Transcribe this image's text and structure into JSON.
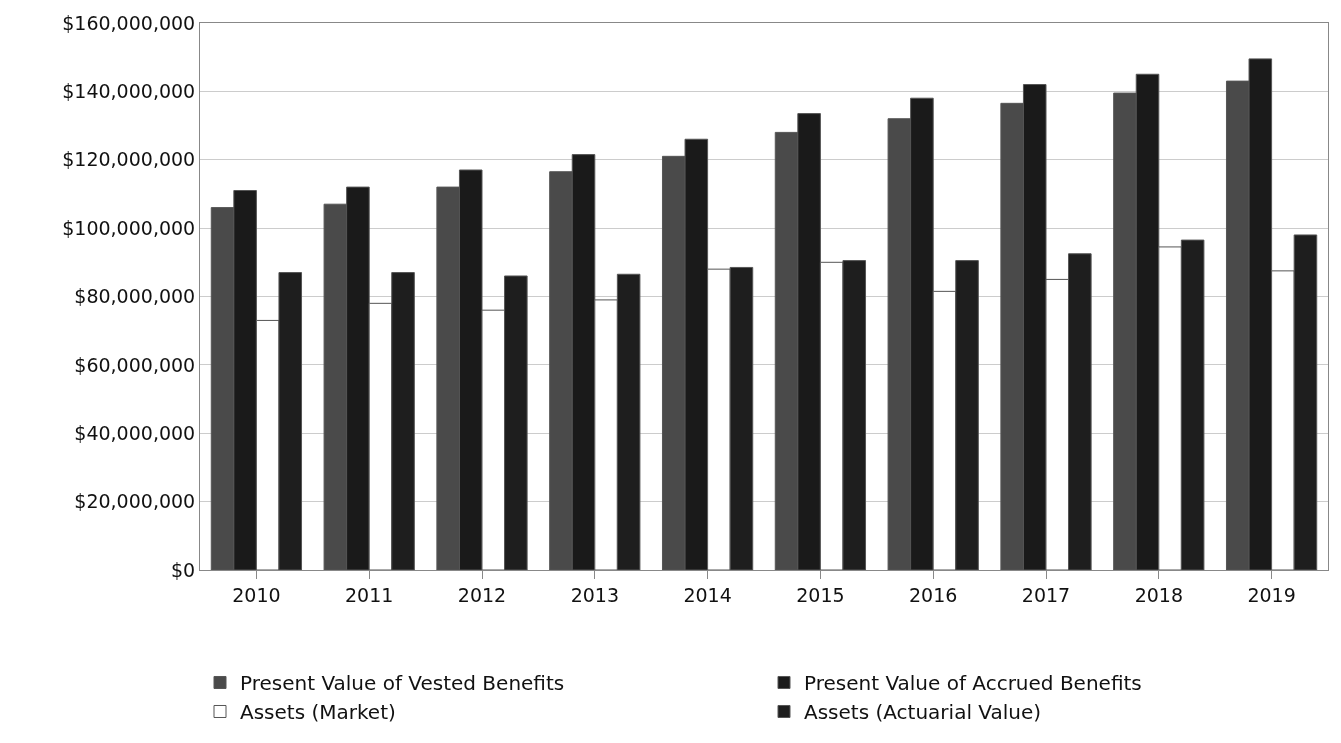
{
  "chart_data": {
    "type": "bar",
    "categories": [
      "2010",
      "2011",
      "2012",
      "2013",
      "2014",
      "2015",
      "2016",
      "2017",
      "2018",
      "2019"
    ],
    "series": [
      {
        "name": "Present Value of Vested Benefits",
        "color": "#4a4a4a",
        "values": [
          106000000,
          107000000,
          112000000,
          116500000,
          121000000,
          128000000,
          132000000,
          136500000,
          139500000,
          143000000
        ]
      },
      {
        "name": "Present Value of Accrued Benefits",
        "color": "#1a1a1a",
        "values": [
          111000000,
          112000000,
          117000000,
          121500000,
          126000000,
          133500000,
          138000000,
          142000000,
          145000000,
          149500000
        ]
      },
      {
        "name": "Assets (Market)",
        "color": "#ffffff",
        "values": [
          73000000,
          78000000,
          76000000,
          79000000,
          88000000,
          90000000,
          81500000,
          85000000,
          94500000,
          87500000
        ]
      },
      {
        "name": "Assets (Actuarial Value)",
        "color": "#1e1e1e",
        "values": [
          87000000,
          87000000,
          86000000,
          86500000,
          88500000,
          90500000,
          90500000,
          92500000,
          96500000,
          98000000
        ]
      }
    ],
    "ylim": [
      0,
      160000000
    ],
    "yticks": [
      {
        "value": 0,
        "label": "$0"
      },
      {
        "value": 20000000,
        "label": "$20,000,000"
      },
      {
        "value": 40000000,
        "label": "$40,000,000"
      },
      {
        "value": 60000000,
        "label": "$60,000,000"
      },
      {
        "value": 80000000,
        "label": "$80,000,000"
      },
      {
        "value": 100000000,
        "label": "$100,000,000"
      },
      {
        "value": 120000000,
        "label": "$120,000,000"
      },
      {
        "value": 140000000,
        "label": "$140,000,000"
      },
      {
        "value": 160000000,
        "label": "$160,000,000"
      }
    ],
    "grid": "y",
    "legend": "bottom"
  }
}
